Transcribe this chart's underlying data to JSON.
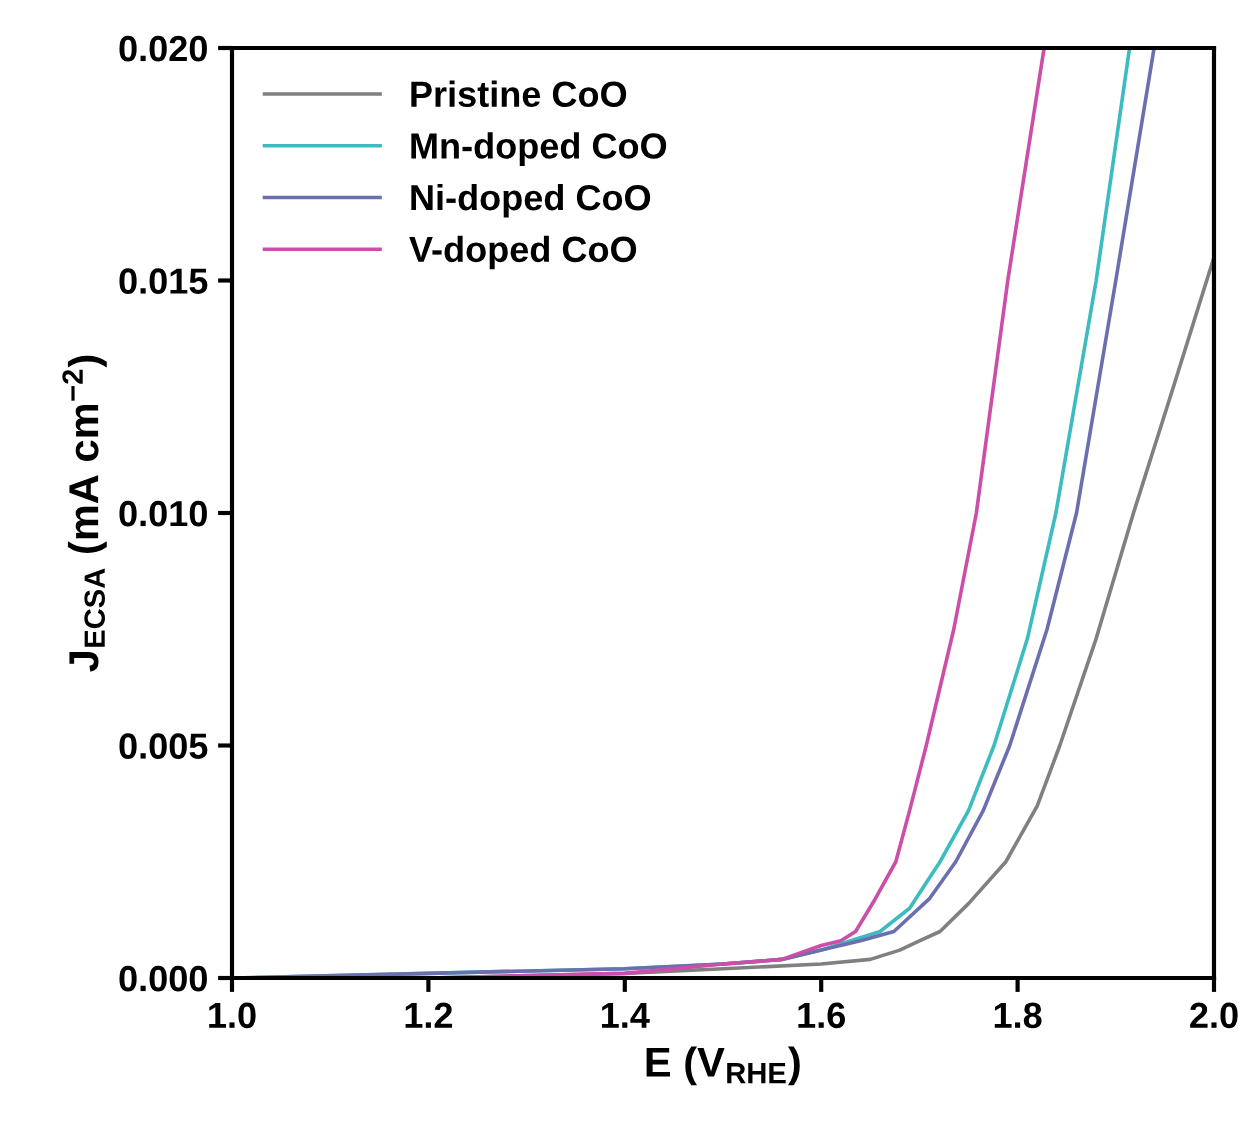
{
  "chart_data": {
    "type": "line",
    "xlabel": "E (V$_{RHE}$)",
    "ylabel": "J$_{ECSA}$ (mA cm$^{−2}$)",
    "xlim": [
      1.0,
      2.0
    ],
    "ylim": [
      0.0,
      0.02
    ],
    "xticks": [
      {
        "value": 1.0,
        "label": "1.0"
      },
      1.2,
      1.4,
      1.6,
      1.8,
      {
        "value": 2.0,
        "label": "2.0"
      }
    ],
    "yticks": [
      {
        "value": 0.0,
        "label": "0.000"
      },
      0.005,
      {
        "value": 0.01,
        "label": "0.010"
      },
      0.015,
      {
        "value": 0.02,
        "label": "0.020"
      }
    ],
    "grid": false,
    "legend": "top left",
    "marker": "none",
    "line_style": "solid",
    "series": [
      {
        "name": "Pristine CoO",
        "color": "#808080",
        "x": [
          1.0,
          1.2,
          1.4,
          1.5,
          1.6,
          1.65,
          1.68,
          1.7,
          1.721,
          1.75,
          1.788,
          1.82,
          1.843,
          1.88,
          1.918,
          1.96,
          2.0
        ],
        "values": [
          0.0,
          0.0,
          0.0001,
          0.0002,
          0.0003,
          0.0004,
          0.0006,
          0.0008,
          0.001,
          0.0016,
          0.0025,
          0.0037,
          0.005,
          0.0073,
          0.01,
          0.0128,
          0.0155
        ]
      },
      {
        "name": "Mn-doped CoO",
        "color": "#3cbcc0",
        "x": [
          1.0,
          1.2,
          1.4,
          1.5,
          1.56,
          1.6,
          1.63,
          1.66,
          1.69,
          1.721,
          1.75,
          1.776,
          1.81,
          1.839,
          1.88,
          1.914
        ],
        "values": [
          0.0,
          0.0001,
          0.0002,
          0.0003,
          0.0004,
          0.0006,
          0.0008,
          0.001,
          0.0015,
          0.0025,
          0.0036,
          0.005,
          0.0073,
          0.01,
          0.015,
          0.02
        ]
      },
      {
        "name": "Ni-doped CoO",
        "color": "#6b6fae",
        "x": [
          1.0,
          1.2,
          1.4,
          1.5,
          1.56,
          1.6,
          1.64,
          1.674,
          1.71,
          1.737,
          1.765,
          1.792,
          1.83,
          1.86,
          1.9,
          1.939
        ],
        "values": [
          0.0,
          0.0001,
          0.0002,
          0.0003,
          0.0004,
          0.0006,
          0.0008,
          0.001,
          0.0017,
          0.0025,
          0.0036,
          0.005,
          0.0075,
          0.01,
          0.015,
          0.02
        ]
      },
      {
        "name": "V-doped CoO",
        "color": "#cc4ea8",
        "x": [
          1.0,
          1.2,
          1.4,
          1.5,
          1.56,
          1.6,
          1.62,
          1.635,
          1.655,
          1.676,
          1.69,
          1.707,
          1.735,
          1.758,
          1.79,
          1.827
        ],
        "values": [
          0.0,
          0.0,
          0.0001,
          0.0003,
          0.0004,
          0.0007,
          0.0008,
          0.001,
          0.0017,
          0.0025,
          0.0036,
          0.005,
          0.0075,
          0.01,
          0.015,
          0.02
        ]
      }
    ]
  }
}
